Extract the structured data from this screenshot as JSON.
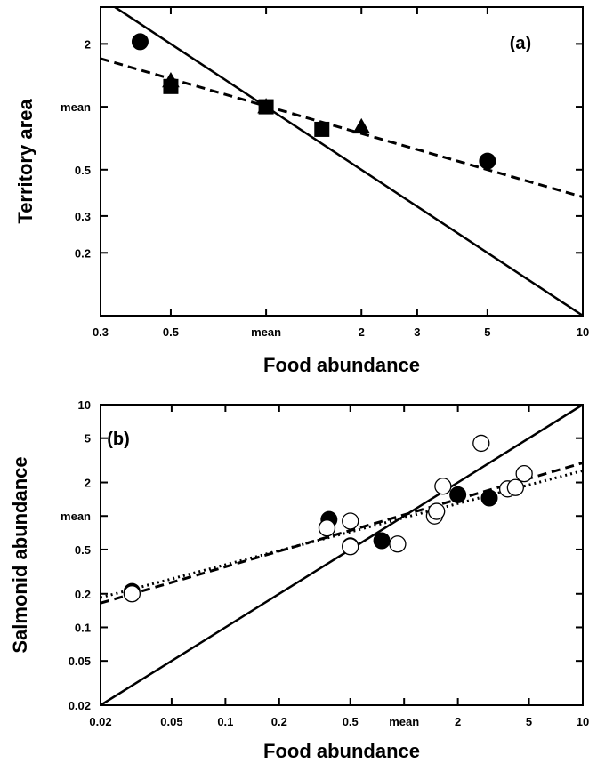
{
  "chart_data": [
    {
      "type": "scatter",
      "panel_label": "(a)",
      "xlabel": "Food abundance",
      "ylabel": "Territory area",
      "xscale": "log",
      "yscale": "log",
      "xlim": [
        0.3,
        10
      ],
      "ylim": [
        0.1,
        3
      ],
      "xticks": [
        {
          "value": 0.3,
          "label": "0.3"
        },
        {
          "value": 0.5,
          "label": "0.5"
        },
        {
          "value": 1,
          "label": "mean"
        },
        {
          "value": 2,
          "label": "2"
        },
        {
          "value": 3,
          "label": "3"
        },
        {
          "value": 5,
          "label": "5"
        },
        {
          "value": 10,
          "label": "10"
        }
      ],
      "yticks": [
        {
          "value": 0.2,
          "label": "0.2"
        },
        {
          "value": 0.3,
          "label": "0.3"
        },
        {
          "value": 0.5,
          "label": "0.5"
        },
        {
          "value": 1,
          "label": "mean"
        },
        {
          "value": 2,
          "label": "2"
        }
      ],
      "series": [
        {
          "marker": "circle",
          "filled": true,
          "points": [
            [
              0.4,
              2.05
            ],
            [
              5,
              0.55
            ]
          ]
        },
        {
          "marker": "triangle",
          "filled": true,
          "points": [
            [
              0.5,
              1.33
            ],
            [
              1,
              1.0
            ],
            [
              2,
              0.8
            ]
          ]
        },
        {
          "marker": "square",
          "filled": true,
          "points": [
            [
              0.5,
              1.25
            ],
            [
              1,
              1.0
            ],
            [
              1.5,
              0.78
            ]
          ]
        }
      ],
      "lines": [
        {
          "style": "solid",
          "points": [
            [
              0.3,
              3.33
            ],
            [
              10,
              0.1
            ]
          ]
        },
        {
          "style": "dashed",
          "points": [
            [
              0.3,
              1.7
            ],
            [
              10,
              0.37
            ]
          ]
        }
      ]
    },
    {
      "type": "scatter",
      "panel_label": "(b)",
      "xlabel": "Food abundance",
      "ylabel": "Salmonid abundance",
      "xscale": "log",
      "yscale": "log",
      "xlim": [
        0.02,
        10
      ],
      "ylim": [
        0.02,
        10
      ],
      "xticks": [
        {
          "value": 0.02,
          "label": "0.02"
        },
        {
          "value": 0.05,
          "label": "0.05"
        },
        {
          "value": 0.1,
          "label": "0.1"
        },
        {
          "value": 0.2,
          "label": "0.2"
        },
        {
          "value": 0.5,
          "label": "0.5"
        },
        {
          "value": 1,
          "label": "mean"
        },
        {
          "value": 2,
          "label": "2"
        },
        {
          "value": 5,
          "label": "5"
        },
        {
          "value": 10,
          "label": "10"
        }
      ],
      "yticks": [
        {
          "value": 0.02,
          "label": "0.02"
        },
        {
          "value": 0.05,
          "label": "0.05"
        },
        {
          "value": 0.1,
          "label": "0.1"
        },
        {
          "value": 0.2,
          "label": "0.2"
        },
        {
          "value": 0.5,
          "label": "0.5"
        },
        {
          "value": 1,
          "label": "mean"
        },
        {
          "value": 2,
          "label": "2"
        },
        {
          "value": 5,
          "label": "5"
        },
        {
          "value": 10,
          "label": "10"
        }
      ],
      "series": [
        {
          "marker": "circle",
          "filled": true,
          "points": [
            [
              0.03,
              0.21
            ],
            [
              0.38,
              0.93
            ],
            [
              0.5,
              0.54
            ],
            [
              0.75,
              0.6
            ],
            [
              2.0,
              1.55
            ],
            [
              3.0,
              1.45
            ]
          ]
        },
        {
          "marker": "circle",
          "filled": false,
          "points": [
            [
              0.03,
              0.2
            ],
            [
              0.37,
              0.78
            ],
            [
              0.5,
              0.53
            ],
            [
              0.5,
              0.9
            ],
            [
              0.92,
              0.56
            ],
            [
              1.48,
              1.0
            ],
            [
              1.52,
              1.1
            ],
            [
              1.65,
              1.85
            ],
            [
              2.7,
              4.5
            ],
            [
              3.8,
              1.75
            ],
            [
              4.2,
              1.8
            ],
            [
              4.7,
              2.4
            ]
          ]
        }
      ],
      "lines": [
        {
          "style": "solid",
          "points": [
            [
              0.02,
              0.02
            ],
            [
              10,
              10
            ]
          ]
        },
        {
          "style": "dashed",
          "points": [
            [
              0.02,
              0.165
            ],
            [
              10,
              3.0
            ]
          ]
        },
        {
          "style": "dotted",
          "points": [
            [
              0.02,
              0.185
            ],
            [
              10,
              2.55
            ]
          ]
        }
      ]
    }
  ]
}
